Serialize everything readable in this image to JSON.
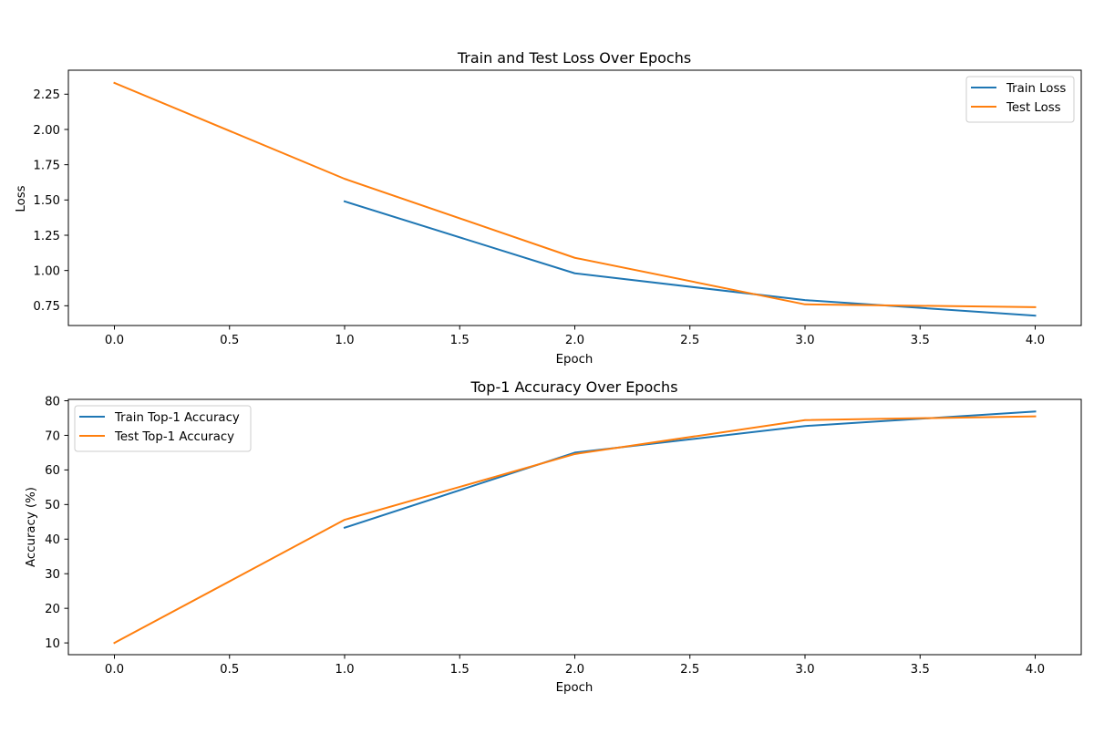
{
  "colors": {
    "train": "#1f77b4",
    "test": "#ff7f0e"
  },
  "chart_data": [
    {
      "type": "line",
      "title": "Train and Test Loss Over Epochs",
      "xlabel": "Epoch",
      "ylabel": "Loss",
      "xlim": [
        -0.2,
        4.2
      ],
      "ylim": [
        0.61,
        2.42
      ],
      "xticks": [
        0.0,
        0.5,
        1.0,
        1.5,
        2.0,
        2.5,
        3.0,
        3.5,
        4.0
      ],
      "xtick_labels": [
        "0.0",
        "0.5",
        "1.0",
        "1.5",
        "2.0",
        "2.5",
        "3.0",
        "3.5",
        "4.0"
      ],
      "yticks": [
        0.75,
        1.0,
        1.25,
        1.5,
        1.75,
        2.0,
        2.25
      ],
      "ytick_labels": [
        "0.75",
        "1.00",
        "1.25",
        "1.50",
        "1.75",
        "2.00",
        "2.25"
      ],
      "grid": false,
      "legend": "top-right",
      "series": [
        {
          "name": "Train Loss",
          "color": "#1f77b4",
          "x": [
            1,
            2,
            3,
            4
          ],
          "y": [
            1.49,
            0.98,
            0.79,
            0.68
          ]
        },
        {
          "name": "Test Loss",
          "color": "#ff7f0e",
          "x": [
            0,
            1,
            2,
            3,
            4
          ],
          "y": [
            2.33,
            1.65,
            1.09,
            0.76,
            0.74
          ]
        }
      ]
    },
    {
      "type": "line",
      "title": "Top-1 Accuracy Over Epochs",
      "xlabel": "Epoch",
      "ylabel": "Accuracy (%)",
      "xlim": [
        -0.2,
        4.2
      ],
      "ylim": [
        6.6,
        80.4
      ],
      "xticks": [
        0.0,
        0.5,
        1.0,
        1.5,
        2.0,
        2.5,
        3.0,
        3.5,
        4.0
      ],
      "xtick_labels": [
        "0.0",
        "0.5",
        "1.0",
        "1.5",
        "2.0",
        "2.5",
        "3.0",
        "3.5",
        "4.0"
      ],
      "yticks": [
        10,
        20,
        30,
        40,
        50,
        60,
        70,
        80
      ],
      "ytick_labels": [
        "10",
        "20",
        "30",
        "40",
        "50",
        "60",
        "70",
        "80"
      ],
      "grid": false,
      "legend": "top-left",
      "series": [
        {
          "name": "Train Top-1 Accuracy",
          "color": "#1f77b4",
          "x": [
            1,
            2,
            3,
            4
          ],
          "y": [
            43.3,
            65.0,
            72.7,
            76.9
          ]
        },
        {
          "name": "Test Top-1 Accuracy",
          "color": "#ff7f0e",
          "x": [
            0,
            1,
            2,
            3,
            4
          ],
          "y": [
            10.0,
            45.6,
            64.6,
            74.4,
            75.5
          ]
        }
      ]
    }
  ]
}
